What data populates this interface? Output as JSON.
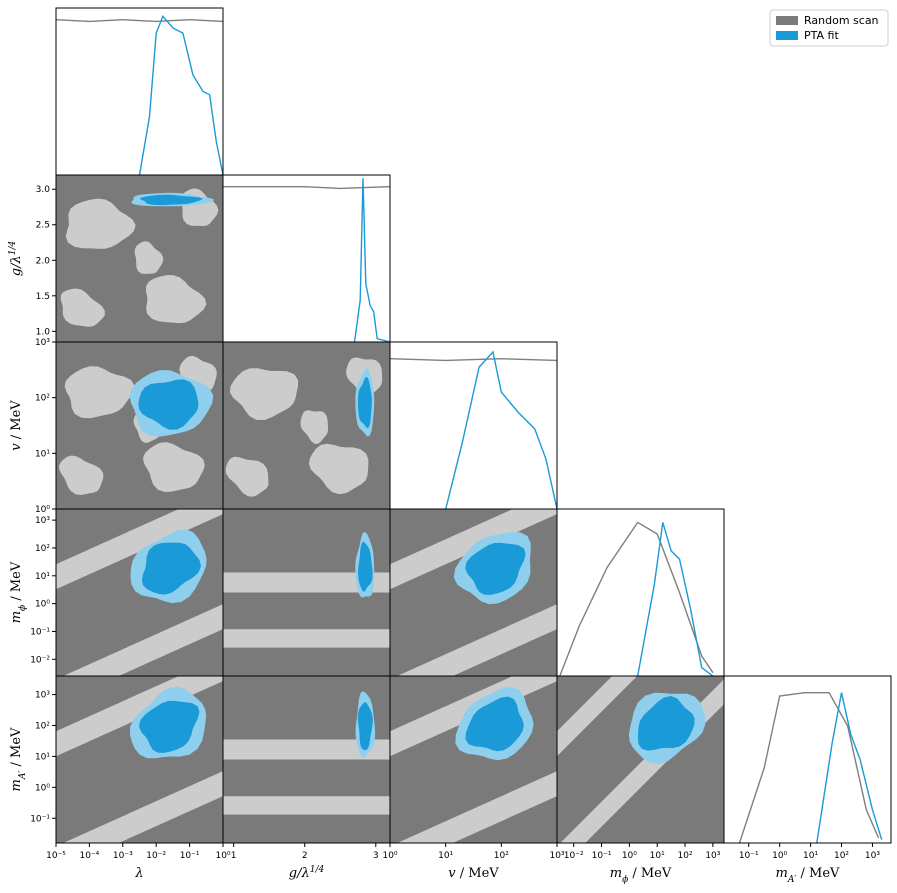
{
  "chart_data": {
    "type": "corner",
    "colors": {
      "random_dark": "#7a7a7a",
      "random_light": "#cccccc",
      "random_line": "#7f7f7f",
      "pta_dark": "#1a9ad6",
      "pta_light": "#8fcfee",
      "pta_line": "#1a9ad6"
    },
    "legend": {
      "position": "top-right",
      "entries": [
        "Random scan",
        "PTA fit"
      ]
    },
    "parameters": [
      {
        "key": "lambda",
        "label_base": "λ",
        "label_sup": "",
        "label_rest": "",
        "scale": "log",
        "range_log": [
          -5,
          0
        ],
        "center_log": -1.6
      },
      {
        "key": "g",
        "label_base": "g/λ",
        "label_sup": "1/4",
        "label_rest": "",
        "scale": "linear",
        "range": [
          0.85,
          3.2
        ],
        "center": 2.85
      },
      {
        "key": "v",
        "label_base": "v",
        "label_sup": "",
        "label_rest": " / MeV",
        "scale": "log",
        "range_log": [
          0,
          3
        ],
        "center_log": 1.9
      },
      {
        "key": "mphi",
        "label_base": "m",
        "label_sub": "ϕ",
        "label_rest": " / MeV",
        "scale": "log",
        "range_log": [
          -2.6,
          3.4
        ],
        "center_log": 1.3
      },
      {
        "key": "mA",
        "label_base": "m",
        "label_sub": "A′",
        "label_rest": " / MeV",
        "scale": "log",
        "range_log": [
          -1.8,
          3.6
        ],
        "center_log": 2.0
      }
    ],
    "ticks": {
      "lambda": {
        "values": [
          -5,
          -4,
          -3,
          -2,
          -1,
          0
        ],
        "labels": [
          "10⁻⁵",
          "10⁻⁴",
          "10⁻³",
          "10⁻²",
          "10⁻¹",
          "10⁰"
        ]
      },
      "g_x": {
        "values": [
          1,
          2,
          3
        ],
        "labels": [
          "1",
          "2",
          "3"
        ]
      },
      "g_y": {
        "values": [
          1.0,
          1.5,
          2.0,
          2.5,
          3.0
        ],
        "labels": [
          "1.0",
          "1.5",
          "2.0",
          "2.5",
          "3.0"
        ]
      },
      "v": {
        "values": [
          0,
          1,
          2,
          3
        ],
        "labels": [
          "10⁰",
          "10¹",
          "10²",
          "10³"
        ]
      },
      "mphi_x": {
        "values": [
          -2,
          -1,
          0,
          1,
          2,
          3
        ],
        "labels": [
          "10⁻²",
          "10⁻¹",
          "10⁰",
          "10¹",
          "10²",
          "10³"
        ]
      },
      "mphi_y": {
        "values": [
          -2,
          -1,
          0,
          1,
          2,
          3
        ],
        "labels": [
          "10⁻²",
          "10⁻¹",
          "10⁰",
          "10¹",
          "10²",
          "10³"
        ]
      },
      "mA_x": {
        "values": [
          -1,
          0,
          1,
          2,
          3
        ],
        "labels": [
          "10⁻¹",
          "10⁰",
          "10¹",
          "10²",
          "10³"
        ]
      },
      "mA_y": {
        "values": [
          -1,
          0,
          1,
          2,
          3
        ],
        "labels": [
          "10⁻¹",
          "10⁰",
          "10¹",
          "10²",
          "10³"
        ]
      }
    },
    "marginals": {
      "lambda": {
        "random_scan": [
          [
            -5,
            0.93
          ],
          [
            -4,
            0.92
          ],
          [
            -3,
            0.93
          ],
          [
            -2,
            0.92
          ],
          [
            -1,
            0.93
          ],
          [
            0,
            0.92
          ]
        ],
        "pta_fit": [
          [
            -2.5,
            0.0
          ],
          [
            -2.2,
            0.35
          ],
          [
            -2.0,
            0.85
          ],
          [
            -1.8,
            0.95
          ],
          [
            -1.5,
            0.88
          ],
          [
            -1.2,
            0.85
          ],
          [
            -0.9,
            0.6
          ],
          [
            -0.6,
            0.5
          ],
          [
            -0.4,
            0.48
          ],
          [
            -0.2,
            0.2
          ],
          [
            0.0,
            0.0
          ]
        ]
      },
      "g": {
        "random_scan": [
          [
            0.85,
            0.93
          ],
          [
            1.5,
            0.93
          ],
          [
            2.0,
            0.93
          ],
          [
            2.5,
            0.92
          ],
          [
            3.2,
            0.93
          ]
        ],
        "pta_fit": [
          [
            2.7,
            0.0
          ],
          [
            2.78,
            0.25
          ],
          [
            2.82,
            0.98
          ],
          [
            2.86,
            0.35
          ],
          [
            2.92,
            0.22
          ],
          [
            2.97,
            0.18
          ],
          [
            3.02,
            0.02
          ],
          [
            3.2,
            0.0
          ]
        ]
      },
      "v": {
        "random_scan": [
          [
            0,
            0.9
          ],
          [
            1,
            0.89
          ],
          [
            2,
            0.9
          ],
          [
            3,
            0.89
          ]
        ],
        "pta_fit": [
          [
            1.0,
            0.0
          ],
          [
            1.3,
            0.4
          ],
          [
            1.6,
            0.85
          ],
          [
            1.85,
            0.94
          ],
          [
            2.0,
            0.7
          ],
          [
            2.3,
            0.58
          ],
          [
            2.6,
            0.48
          ],
          [
            2.8,
            0.3
          ],
          [
            3.0,
            0.0
          ]
        ]
      },
      "mphi": {
        "random_scan": [
          [
            -2.5,
            0.0
          ],
          [
            -1.8,
            0.3
          ],
          [
            -0.8,
            0.65
          ],
          [
            0.3,
            0.92
          ],
          [
            1.0,
            0.85
          ],
          [
            1.8,
            0.5
          ],
          [
            2.6,
            0.12
          ],
          [
            3.0,
            0.02
          ]
        ],
        "pta_fit": [
          [
            0.3,
            0.0
          ],
          [
            0.9,
            0.55
          ],
          [
            1.2,
            0.92
          ],
          [
            1.5,
            0.75
          ],
          [
            1.8,
            0.7
          ],
          [
            2.2,
            0.4
          ],
          [
            2.6,
            0.05
          ],
          [
            3.0,
            0.0
          ]
        ]
      },
      "mA": {
        "random_scan": [
          [
            -1.3,
            0.0
          ],
          [
            -0.5,
            0.45
          ],
          [
            0.0,
            0.88
          ],
          [
            0.8,
            0.9
          ],
          [
            1.6,
            0.9
          ],
          [
            2.2,
            0.7
          ],
          [
            2.8,
            0.2
          ],
          [
            3.2,
            0.03
          ]
        ],
        "pta_fit": [
          [
            1.2,
            0.0
          ],
          [
            1.7,
            0.6
          ],
          [
            2.0,
            0.9
          ],
          [
            2.3,
            0.65
          ],
          [
            2.6,
            0.5
          ],
          [
            3.0,
            0.2
          ],
          [
            3.3,
            0.02
          ]
        ]
      }
    }
  }
}
